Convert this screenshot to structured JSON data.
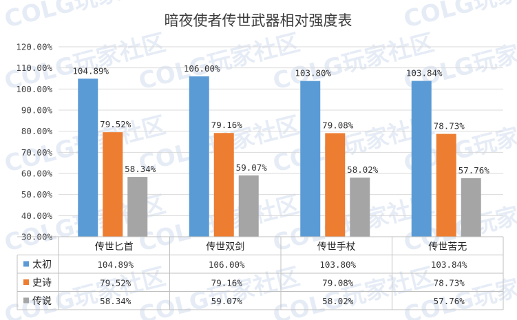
{
  "watermark": "COLG玩家社区",
  "colors": {
    "background": "#ffffff",
    "grid": "#d9d9d9",
    "axis": "#bfbfbf",
    "text": "#404040"
  },
  "chart_data": {
    "type": "bar",
    "title": "暗夜使者传世武器相对强度表",
    "xlabel": "",
    "ylabel": "",
    "ylim": [
      30,
      120
    ],
    "yticks": [
      "30.00%",
      "40.00%",
      "50.00%",
      "60.00%",
      "70.00%",
      "80.00%",
      "90.00%",
      "100.00%",
      "110.00%",
      "120.00%"
    ],
    "grid": true,
    "legend": "data-table",
    "categories": [
      "传世匕首",
      "传世双剑",
      "传世手杖",
      "传世苦无"
    ],
    "series": [
      {
        "name": "太初",
        "color": "#5b9bd5",
        "values": [
          104.89,
          106.0,
          103.8,
          103.84
        ],
        "labels": [
          "104.89%",
          "106.00%",
          "103.80%",
          "103.84%"
        ]
      },
      {
        "name": "史诗",
        "color": "#ed7d31",
        "values": [
          79.52,
          79.16,
          79.08,
          78.73
        ],
        "labels": [
          "79.52%",
          "79.16%",
          "79.08%",
          "78.73%"
        ]
      },
      {
        "name": "传说",
        "color": "#a5a5a5",
        "values": [
          58.34,
          59.07,
          58.02,
          57.76
        ],
        "labels": [
          "58.34%",
          "59.07%",
          "58.02%",
          "57.76%"
        ]
      }
    ]
  }
}
